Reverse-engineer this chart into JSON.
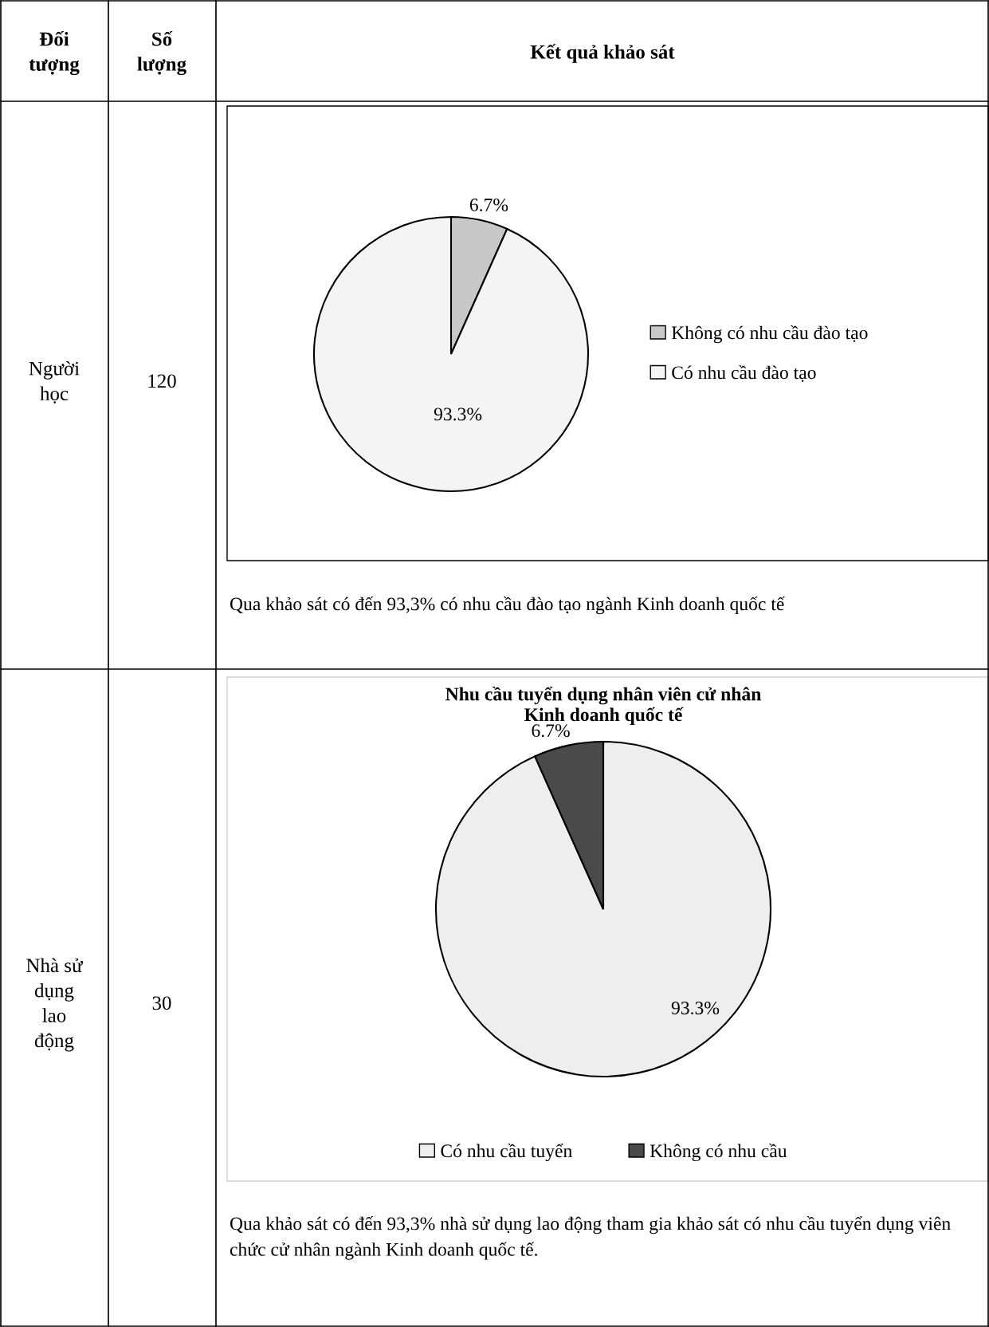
{
  "chart_data": [
    {
      "type": "other",
      "annotations": [
        "Đối\ntượng",
        "Số\nlượng",
        "Kết quả khảo sát",
        "Người\nhọc",
        "120",
        "Nhà sử\ndụng\nlao\nđộng",
        "30"
      ]
    },
    {
      "type": "pie",
      "categories": [
        "Không có nhu cầu đào tạo",
        "Có nhu cầu đào tạo"
      ],
      "values": [
        6.7,
        93.3
      ],
      "colors": [
        "#c8c8c8",
        "#f4f4f4"
      ],
      "value_labels": [
        "6.7%",
        "93.3%"
      ],
      "legend": "right",
      "annotations": [
        "Qua khảo sát có đến 93,3% có nhu cầu đào tạo ngành Kinh doanh quốc tế"
      ]
    },
    {
      "type": "pie",
      "title": "Nhu cầu tuyển dụng nhân viên cử nhân\nKinh doanh quốc tế",
      "categories": [
        "Có nhu cầu tuyển",
        "Không có nhu cầu"
      ],
      "values": [
        93.3,
        6.7
      ],
      "colors": [
        "#eeeeee",
        "#4a4a4a"
      ],
      "value_labels": [
        "93.3%",
        "6.7%"
      ],
      "legend": "bottom",
      "annotations": [
        "Qua khảo sát có đến 93,3% nhà sử dụng lao động tham gia khảo sát có nhu cầu tuyển dụng viên chức cử nhân ngành Kinh doanh quốc tế."
      ]
    }
  ]
}
